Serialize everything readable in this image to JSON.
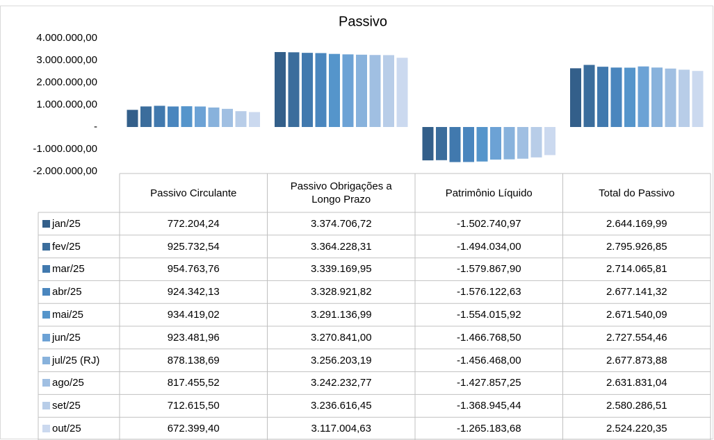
{
  "chart_data": {
    "type": "bar",
    "title": "Passivo",
    "categories": [
      "Passivo Circulante",
      "Passivo Obrigações a Longo Prazo",
      "Patrimônio Líquido",
      "Total do Passivo"
    ],
    "ylim": [
      -2000000,
      4000000
    ],
    "yticks": [
      {
        "value": 4000000,
        "label": "4.000.000,00"
      },
      {
        "value": 3000000,
        "label": "3.000.000,00"
      },
      {
        "value": 2000000,
        "label": "2.000.000,00"
      },
      {
        "value": 1000000,
        "label": "1.000.000,00"
      },
      {
        "value": 0,
        "label": "-"
      },
      {
        "value": -1000000,
        "label": "-1.000.000,00"
      },
      {
        "value": -2000000,
        "label": "-2.000.000,00"
      }
    ],
    "series": [
      {
        "name": "jan/25",
        "color": "#335f8a",
        "values": [
          772204.24,
          3374706.72,
          -1502740.97,
          2644169.99
        ],
        "value_labels": [
          "772.204,24",
          "3.374.706,72",
          "-1.502.740,97",
          "2.644.169,99"
        ]
      },
      {
        "name": "fev/25",
        "color": "#3b6d9c",
        "values": [
          925732.54,
          3364228.31,
          -1494034.0,
          2795926.85
        ],
        "value_labels": [
          "925.732,54",
          "3.364.228,31",
          "-1.494.034,00",
          "2.795.926,85"
        ]
      },
      {
        "name": "mar/25",
        "color": "#4179ae",
        "values": [
          954763.76,
          3339169.95,
          -1579867.9,
          2714065.81
        ],
        "value_labels": [
          "954.763,76",
          "3.339.169,95",
          "-1.579.867,90",
          "2.714.065,81"
        ]
      },
      {
        "name": "abr/25",
        "color": "#4a86be",
        "values": [
          924342.13,
          3328921.82,
          -1576122.63,
          2677141.32
        ],
        "value_labels": [
          "924.342,13",
          "3.328.921,82",
          "-1.576.122,63",
          "2.677.141,32"
        ]
      },
      {
        "name": "mai/25",
        "color": "#5595cb",
        "values": [
          934419.02,
          3291136.99,
          -1554015.92,
          2671540.09
        ],
        "value_labels": [
          "934.419,02",
          "3.291.136,99",
          "-1.554.015,92",
          "2.671.540,09"
        ]
      },
      {
        "name": "jun/25",
        "color": "#6ca2d5",
        "values": [
          923481.96,
          3270841.0,
          -1466768.5,
          2727554.46
        ],
        "value_labels": [
          "923.481,96",
          "3.270.841,00",
          "-1.466.768,50",
          "2.727.554,46"
        ]
      },
      {
        "name": "jul/25 (RJ)",
        "color": "#88b2dc",
        "values": [
          878138.69,
          3256203.19,
          -1456468.0,
          2677873.88
        ],
        "value_labels": [
          "878.138,69",
          "3.256.203,19",
          "-1.456.468,00",
          "2.677.873,88"
        ]
      },
      {
        "name": "ago/25",
        "color": "#a0bfe2",
        "values": [
          817455.52,
          3242232.77,
          -1427857.25,
          2631831.04
        ],
        "value_labels": [
          "817.455,52",
          "3.242.232,77",
          "-1.427.857,25",
          "2.631.831,04"
        ]
      },
      {
        "name": "set/25",
        "color": "#b8cde8",
        "values": [
          712615.5,
          3236616.45,
          -1368945.44,
          2580286.51
        ],
        "value_labels": [
          "712.615,50",
          "3.236.616,45",
          "-1.368.945,44",
          "2.580.286,51"
        ]
      },
      {
        "name": "out/25",
        "color": "#cbd9ef",
        "values": [
          672399.4,
          3117004.63,
          -1265183.68,
          2524220.35
        ],
        "value_labels": [
          "672.399,40",
          "3.117.004,63",
          "-1.265.183,68",
          "2.524.220,35"
        ]
      }
    ]
  }
}
